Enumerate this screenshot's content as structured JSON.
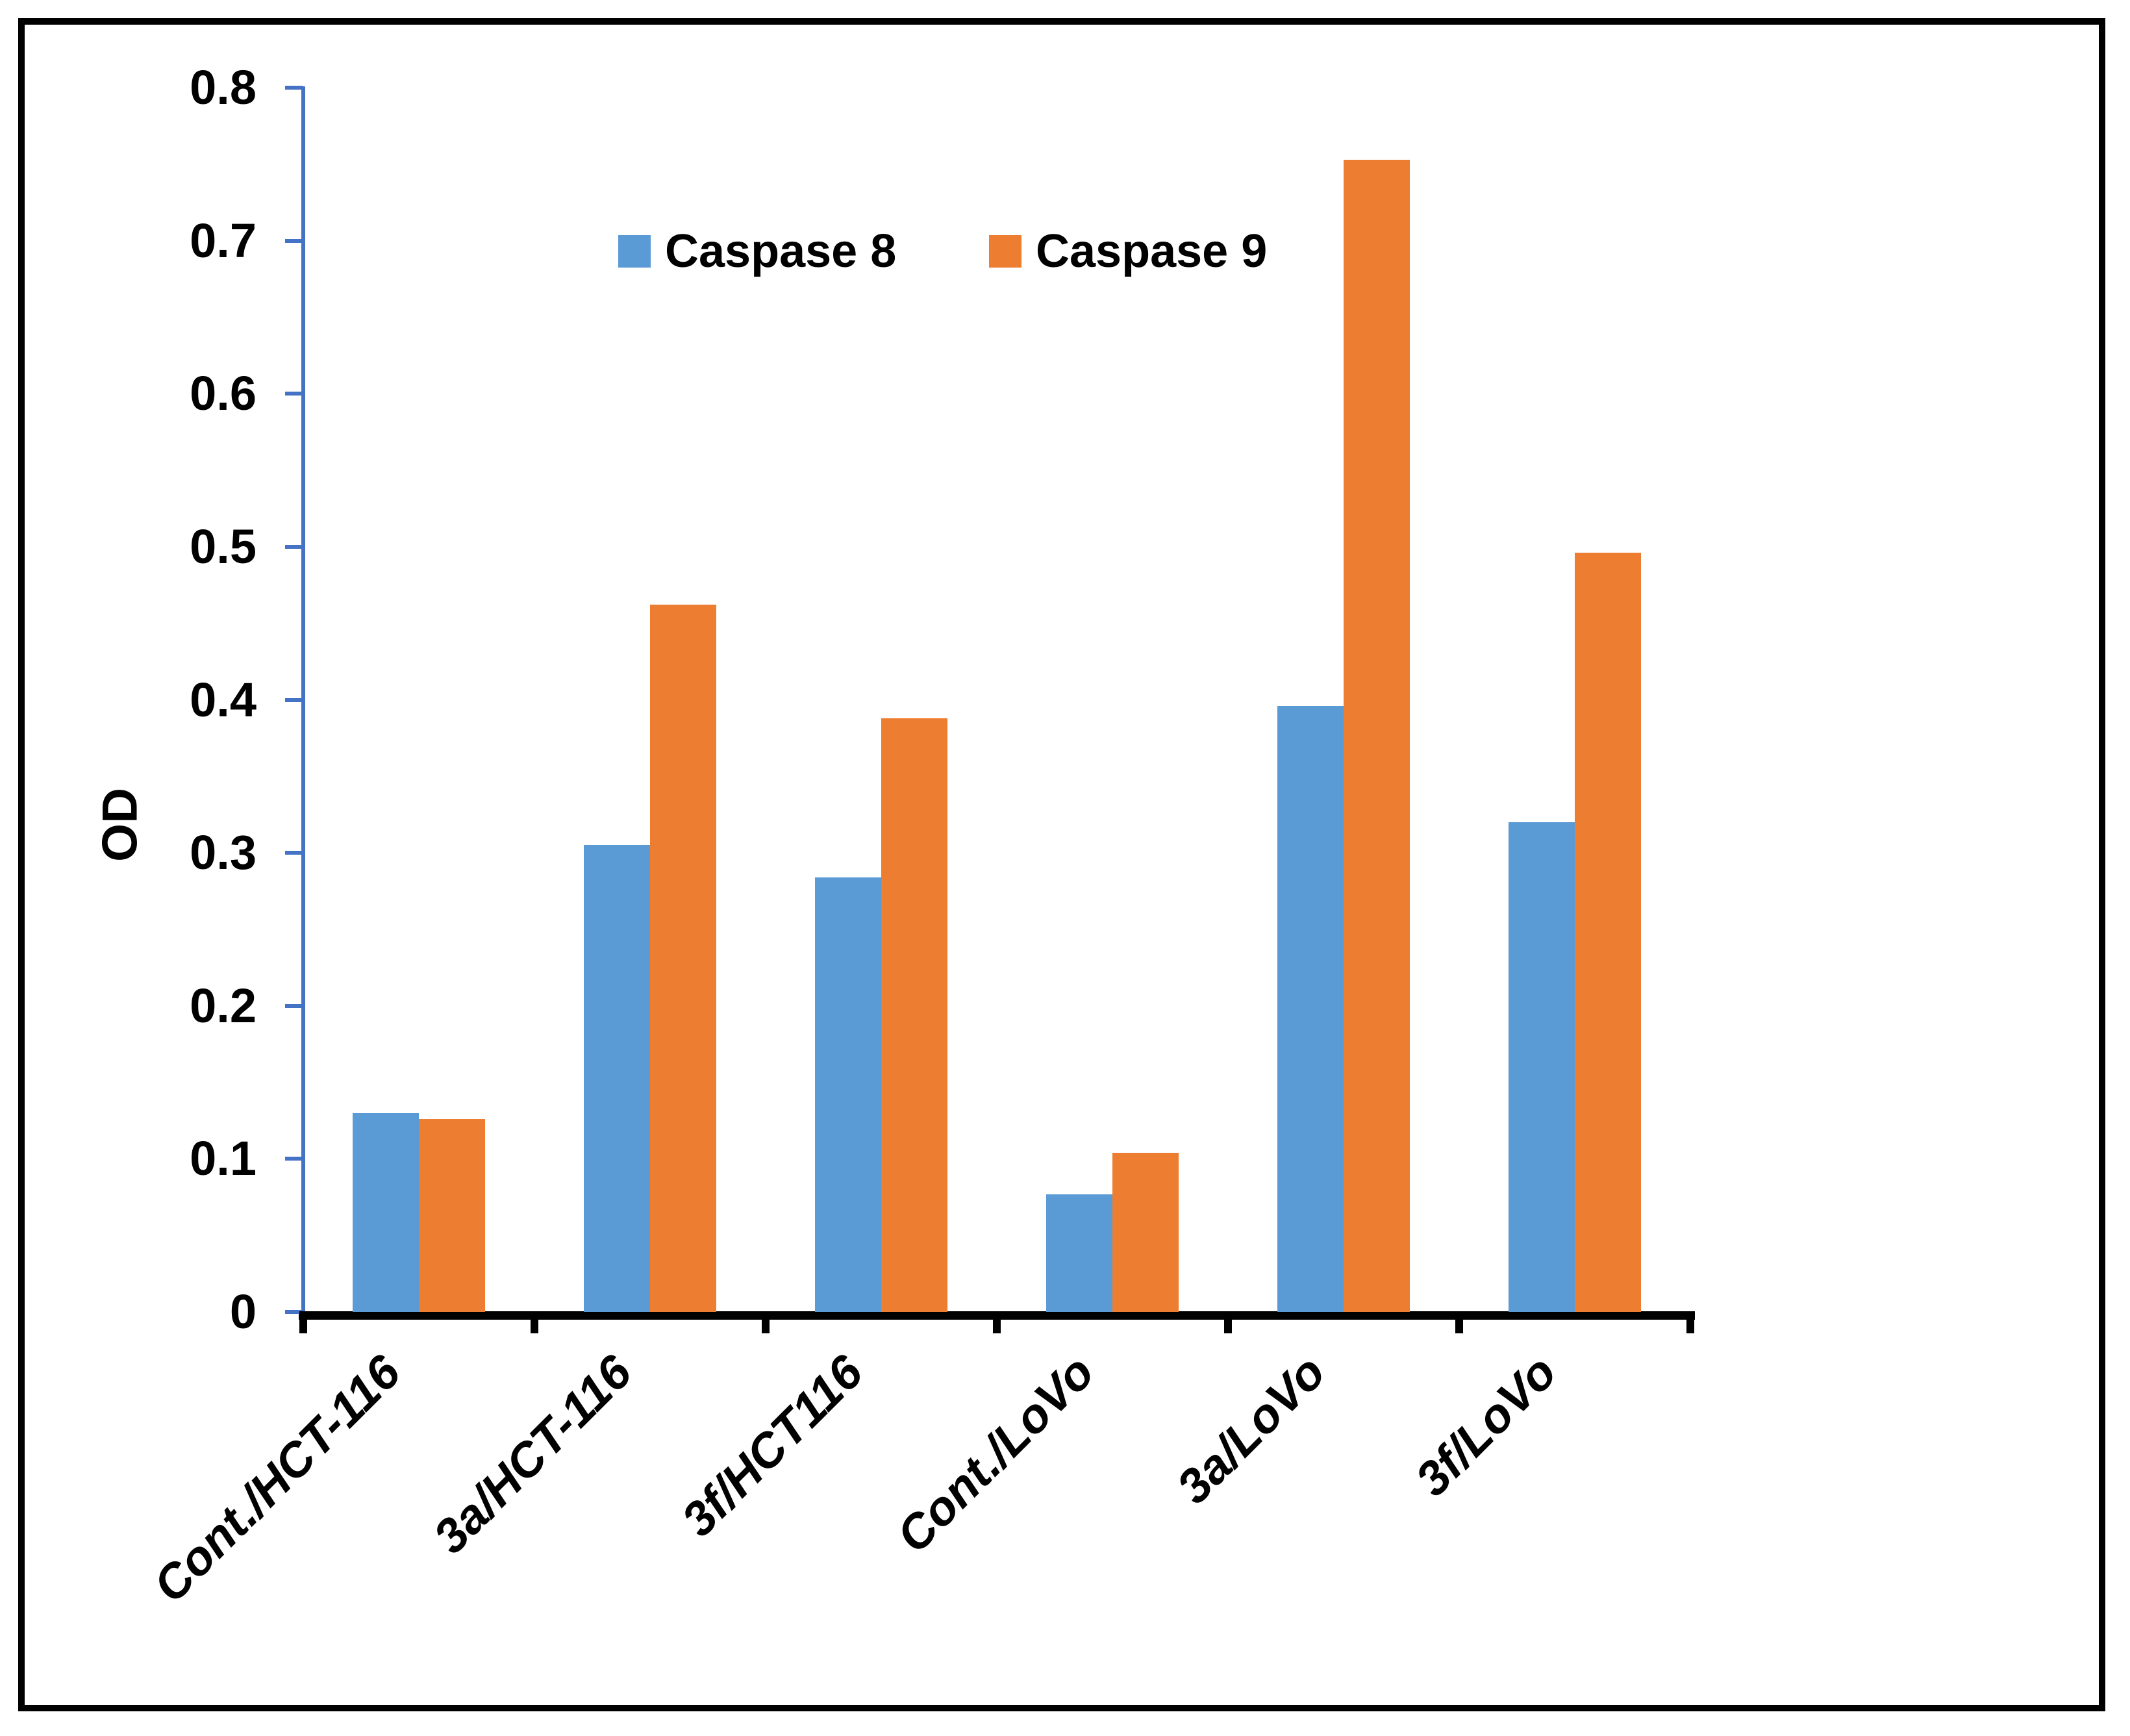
{
  "ylabel": "OD",
  "colors": {
    "caspase8_blue": "#5B9BD5",
    "caspase9_orange": "#ED7D31",
    "axis_blue": "#4472C4",
    "axis_black": "#000000",
    "text": "#000000",
    "border": "#000000",
    "background": "#FFFFFF"
  },
  "legend": {
    "items": [
      {
        "label": "Caspase 8",
        "color": "#5B9BD5"
      },
      {
        "label": "Caspase 9",
        "color": "#ED7D31"
      }
    ]
  },
  "chart_data": {
    "type": "bar",
    "title": "",
    "xlabel": "",
    "ylabel": "OD",
    "categories": [
      "Cont./HCT-116",
      "3a/HCT-116",
      "3f/HCT116",
      "Cont./LoVo",
      "3a/LoVo",
      "3f/LoVo"
    ],
    "series": [
      {
        "name": "Caspase 8",
        "color": "#5B9BD5",
        "values": [
          0.13,
          0.305,
          0.284,
          0.077,
          0.396,
          0.32
        ]
      },
      {
        "name": "Caspase 9",
        "color": "#ED7D31",
        "values": [
          0.126,
          0.462,
          0.388,
          0.104,
          0.753,
          0.496
        ]
      }
    ],
    "ylim": [
      0,
      0.8
    ],
    "ytick_step": 0.1,
    "ytick_labels": [
      "0",
      "0.1",
      "0.2",
      "0.3",
      "0.4",
      "0.5",
      "0.6",
      "0.7",
      "0.8"
    ],
    "grid": false,
    "legend_position": "top-center"
  }
}
